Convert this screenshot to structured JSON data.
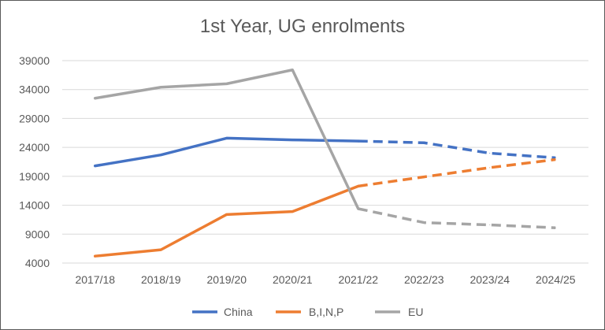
{
  "chart_data": {
    "type": "line",
    "title": "1st Year, UG enrolments",
    "categories": [
      "2017/18",
      "2018/19",
      "2019/20",
      "2020/21",
      "2021/22",
      "2022/23",
      "2023/24",
      "2024/25"
    ],
    "ylim": [
      4000,
      39000
    ],
    "yticks": [
      "4000",
      "9000",
      "14000",
      "19000",
      "24000",
      "29000",
      "34000",
      "39000"
    ],
    "grid": true,
    "legend_position": "bottom",
    "actual_through_index": 4,
    "series": [
      {
        "name": "China",
        "color": "#4472C4",
        "values": [
          20800,
          22700,
          25600,
          25300,
          25100,
          24800,
          23000,
          22200
        ]
      },
      {
        "name": "B,I,N,P",
        "color": "#ED7D31",
        "values": [
          5200,
          6300,
          12400,
          12900,
          17300,
          18900,
          20500,
          21900
        ]
      },
      {
        "name": "EU",
        "color": "#A5A5A5",
        "values": [
          32500,
          34400,
          35000,
          37400,
          13400,
          11000,
          10600,
          10100
        ]
      }
    ]
  }
}
